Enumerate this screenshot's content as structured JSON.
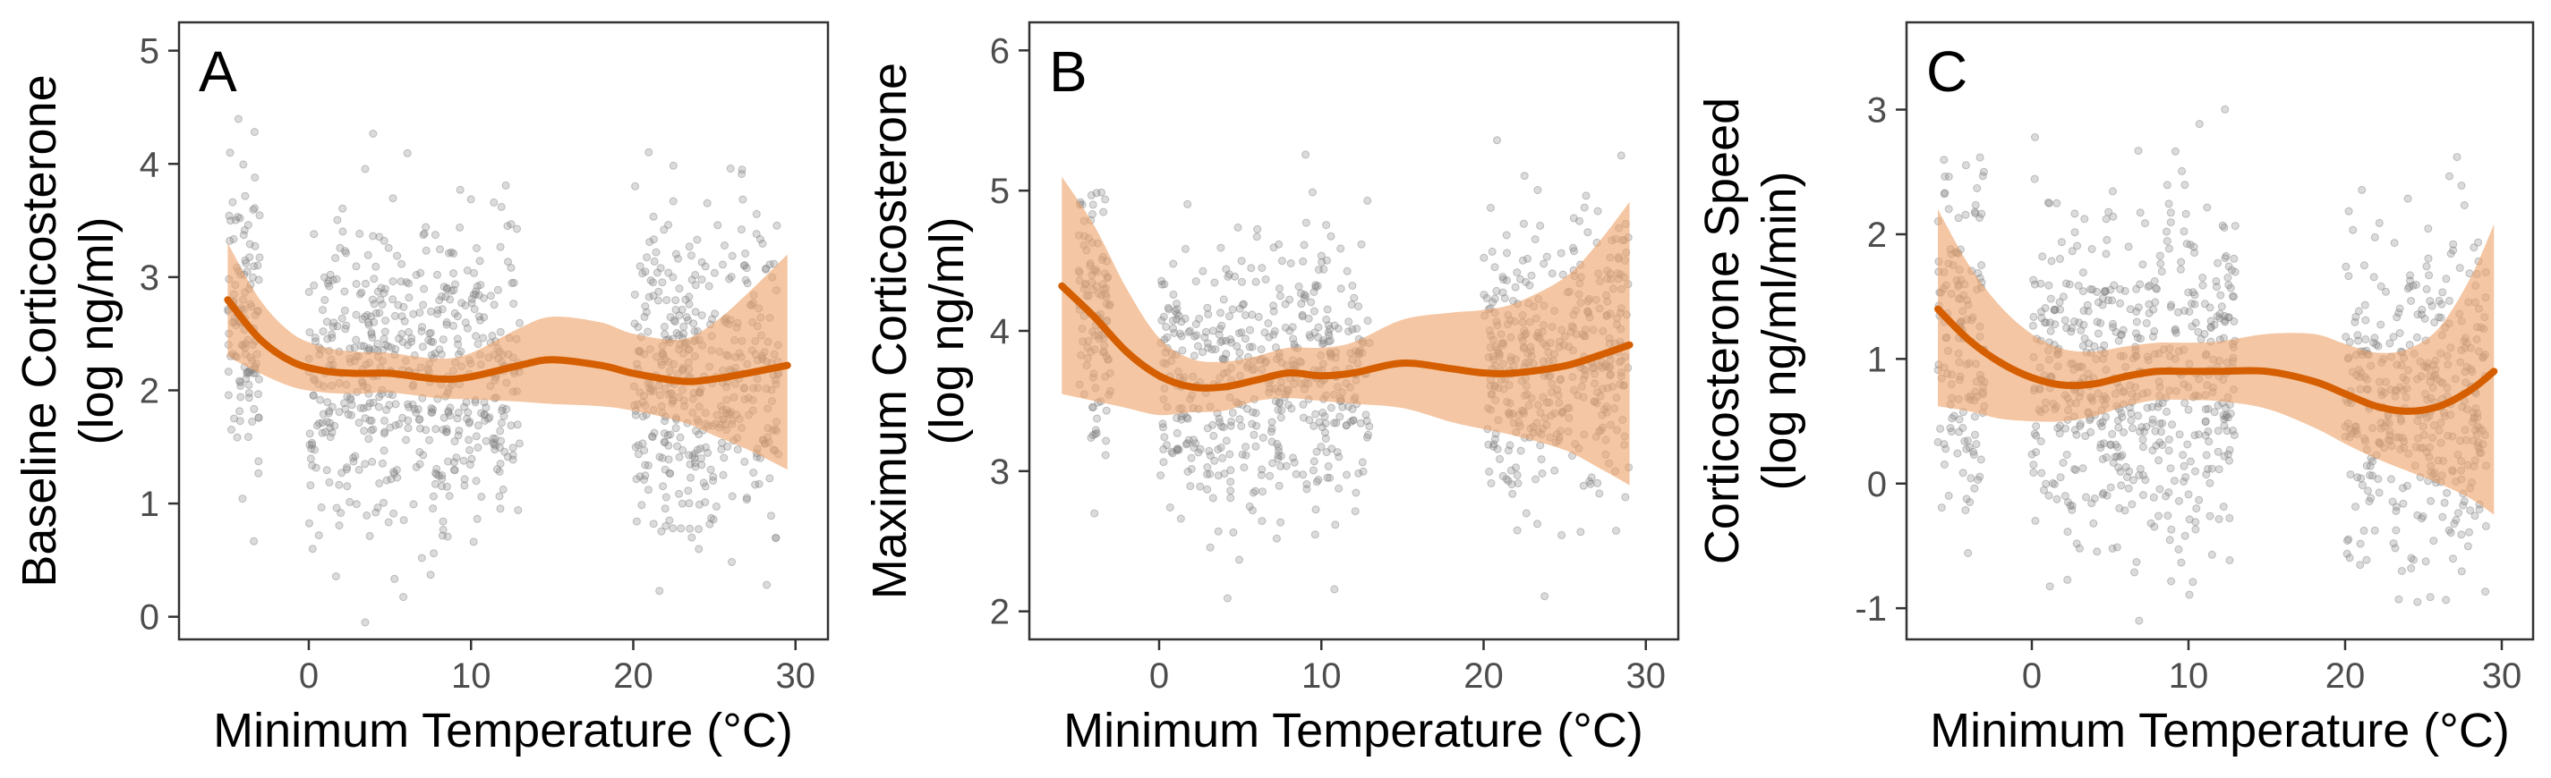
{
  "figure": {
    "x_axis_title": "Minimum Temperature (°C)",
    "colors": {
      "point": "#7f7f7f",
      "smooth_line": "#d55e00",
      "ribbon": "#eda36b",
      "panel_border": "#333333",
      "tick_text": "#4d4d4d"
    }
  },
  "chart_data": [
    {
      "type": "scatter",
      "panel_label": "A",
      "ylabel_lines": [
        "Baseline Corticosterone",
        "(log ng/ml)"
      ],
      "xlabel": "Minimum Temperature (°C)",
      "xlim": [
        -8,
        32
      ],
      "ylim": [
        -0.2,
        5.25
      ],
      "x_ticks": [
        0,
        10,
        20,
        30
      ],
      "y_ticks": [
        0,
        1,
        2,
        3,
        4,
        5
      ],
      "y_tick_labels": [
        "0",
        "1",
        "2",
        "3",
        "4",
        "5"
      ],
      "grid": false,
      "scatter_summary": {
        "approx_point_count": 1100,
        "x_range": [
          -5,
          29
        ],
        "y_center": 2.2,
        "y_spread_sd": 0.7,
        "clusters_x": [
          [
            -5,
            -3
          ],
          [
            0,
            13
          ],
          [
            20,
            29
          ]
        ]
      },
      "smooth": {
        "x": [
          -5,
          -3,
          -1,
          1,
          3,
          5,
          8,
          10,
          13,
          15,
          18,
          20,
          23,
          25,
          27,
          29.5
        ],
        "y": [
          2.8,
          2.45,
          2.25,
          2.17,
          2.15,
          2.15,
          2.1,
          2.12,
          2.22,
          2.27,
          2.22,
          2.15,
          2.08,
          2.1,
          2.15,
          2.22
        ]
      },
      "ribbon": {
        "x": [
          -5,
          -3,
          -1,
          1,
          3,
          5,
          8,
          10,
          13,
          15,
          18,
          20,
          23,
          25,
          27,
          29.5
        ],
        "lower": [
          2.3,
          2.15,
          2.03,
          1.98,
          1.97,
          1.98,
          1.93,
          1.92,
          1.9,
          1.88,
          1.86,
          1.82,
          1.72,
          1.6,
          1.48,
          1.3
        ],
        "upper": [
          3.3,
          2.8,
          2.5,
          2.38,
          2.34,
          2.33,
          2.28,
          2.33,
          2.55,
          2.65,
          2.6,
          2.5,
          2.45,
          2.6,
          2.85,
          3.2
        ]
      }
    },
    {
      "type": "scatter",
      "panel_label": "B",
      "ylabel_lines": [
        "Maximum Corticosterone",
        "(log ng/ml)"
      ],
      "xlabel": "Minimum Temperature (°C)",
      "xlim": [
        -8,
        32
      ],
      "ylim": [
        1.8,
        6.2
      ],
      "x_ticks": [
        0,
        10,
        20,
        30
      ],
      "y_ticks": [
        2,
        3,
        4,
        5,
        6
      ],
      "y_tick_labels": [
        "2",
        "3",
        "4",
        "5",
        "6"
      ],
      "grid": false,
      "scatter_summary": {
        "approx_point_count": 1000,
        "x_range": [
          -5,
          29
        ],
        "y_center": 3.8,
        "y_spread_sd": 0.5,
        "clusters_x": [
          [
            -5,
            -3
          ],
          [
            0,
            13
          ],
          [
            20,
            29
          ]
        ]
      },
      "smooth": {
        "x": [
          -6,
          -4,
          -2,
          0,
          2,
          4,
          6,
          8,
          10,
          12,
          15,
          18,
          20,
          22,
          25,
          27,
          29
        ],
        "y": [
          4.32,
          4.1,
          3.85,
          3.68,
          3.6,
          3.6,
          3.65,
          3.7,
          3.68,
          3.7,
          3.77,
          3.73,
          3.7,
          3.7,
          3.75,
          3.82,
          3.9
        ]
      },
      "ribbon": {
        "x": [
          -6,
          -4,
          -2,
          0,
          2,
          4,
          6,
          8,
          10,
          12,
          15,
          18,
          20,
          22,
          25,
          27,
          29
        ],
        "lower": [
          3.55,
          3.5,
          3.45,
          3.4,
          3.42,
          3.43,
          3.5,
          3.52,
          3.5,
          3.48,
          3.45,
          3.35,
          3.3,
          3.25,
          3.15,
          3.03,
          2.9
        ],
        "upper": [
          5.1,
          4.75,
          4.3,
          3.95,
          3.8,
          3.78,
          3.82,
          3.88,
          3.88,
          3.92,
          4.08,
          4.13,
          4.15,
          4.2,
          4.38,
          4.62,
          4.92
        ]
      }
    },
    {
      "type": "scatter",
      "panel_label": "C",
      "ylabel_lines": [
        "Corticosterone Speed",
        "(log ng/ml/min)"
      ],
      "xlabel": "Minimum Temperature (°C)",
      "xlim": [
        -8,
        32
      ],
      "ylim": [
        -1.25,
        3.7
      ],
      "x_ticks": [
        0,
        10,
        20,
        30
      ],
      "y_ticks": [
        -1,
        0,
        1,
        2,
        3
      ],
      "y_tick_labels": [
        "-1",
        "0",
        "1",
        "2",
        "3"
      ],
      "grid": false,
      "scatter_summary": {
        "approx_point_count": 1100,
        "x_range": [
          -6,
          29
        ],
        "y_center": 0.9,
        "y_spread_sd": 0.7,
        "clusters_x": [
          [
            -6,
            -3
          ],
          [
            0,
            13
          ],
          [
            20,
            29
          ]
        ]
      },
      "smooth": {
        "x": [
          -6,
          -4,
          -2,
          0,
          2,
          4,
          6,
          8,
          10,
          12,
          15,
          18,
          20,
          22,
          24,
          26,
          28,
          29.5
        ],
        "y": [
          1.4,
          1.15,
          0.97,
          0.85,
          0.79,
          0.8,
          0.86,
          0.9,
          0.9,
          0.9,
          0.9,
          0.82,
          0.72,
          0.62,
          0.58,
          0.62,
          0.75,
          0.9
        ]
      },
      "ribbon": {
        "x": [
          -6,
          -4,
          -2,
          0,
          2,
          4,
          6,
          8,
          10,
          12,
          15,
          18,
          20,
          22,
          24,
          26,
          28,
          29.5
        ],
        "lower": [
          0.62,
          0.58,
          0.52,
          0.5,
          0.5,
          0.54,
          0.62,
          0.67,
          0.67,
          0.66,
          0.6,
          0.45,
          0.32,
          0.2,
          0.1,
          0.0,
          -0.12,
          -0.25
        ],
        "upper": [
          2.2,
          1.75,
          1.42,
          1.2,
          1.08,
          1.06,
          1.1,
          1.13,
          1.13,
          1.14,
          1.2,
          1.2,
          1.12,
          1.05,
          1.08,
          1.25,
          1.65,
          2.08
        ]
      }
    }
  ]
}
